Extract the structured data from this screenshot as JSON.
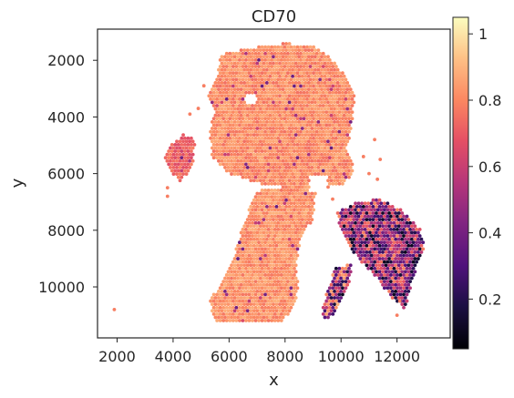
{
  "chart_data": {
    "type": "scatter",
    "title": "CD70",
    "xlabel": "x",
    "ylabel": "y",
    "xlim": [
      1300,
      13900
    ],
    "ylim": [
      11800,
      900
    ],
    "y_inverted": true,
    "x_ticks": [
      "2000",
      "4000",
      "6000",
      "8000",
      "10000",
      "12000"
    ],
    "y_ticks": [
      "2000",
      "4000",
      "6000",
      "8000",
      "10000"
    ],
    "colorbar": {
      "colormap": "magma",
      "range": [
        0.05,
        1.05
      ],
      "ticks": [
        "0.2",
        "0.4",
        "0.6",
        "0.8",
        "1"
      ]
    },
    "regions": [
      {
        "name": "upper tissue lobe",
        "x": [
          5200,
          10600
        ],
        "y": [
          1400,
          6700
        ],
        "value": 0.82
      },
      {
        "name": "left protrusion",
        "x": [
          3700,
          4800
        ],
        "y": [
          4600,
          6300
        ],
        "value": 0.72
      },
      {
        "name": "lower left lobe",
        "x": [
          5300,
          9200
        ],
        "y": [
          6600,
          11300
        ],
        "value": 0.83
      },
      {
        "name": "right lobe",
        "x": [
          9700,
          13000
        ],
        "y": [
          6800,
          10900
        ],
        "value": 0.45
      },
      {
        "name": "lower right strip",
        "x": [
          9200,
          10500
        ],
        "y": [
          9200,
          11200
        ],
        "value": 0.5
      }
    ]
  }
}
